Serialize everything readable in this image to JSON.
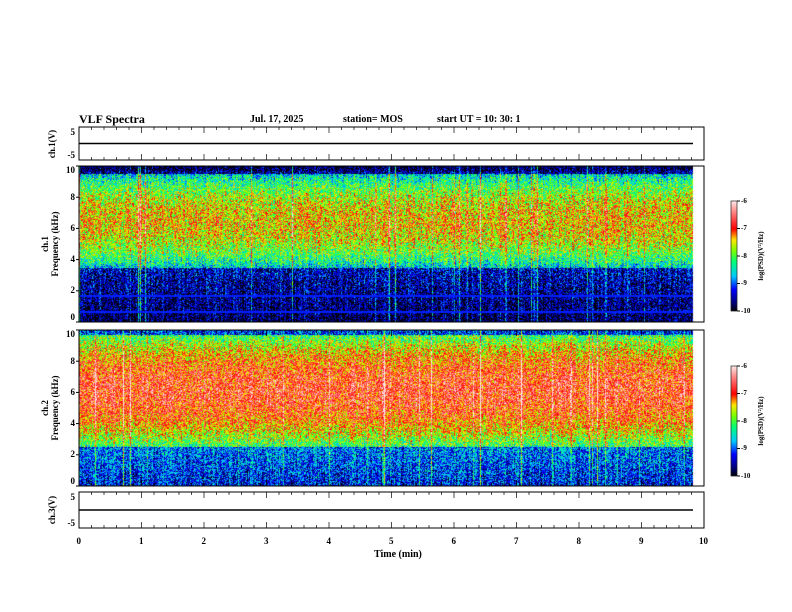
{
  "header": {
    "title": "VLF Spectra",
    "date": "Jul. 17, 2025",
    "station": "station= MOS",
    "start": "start  UT =   10: 30: 1"
  },
  "chart_data": {
    "type": "heatmap",
    "title": "VLF Spectra",
    "xlabel": "Time (min)",
    "xlim": [
      0,
      10
    ],
    "x_ticks": [
      "0",
      "1",
      "2",
      "3",
      "4",
      "5",
      "6",
      "7",
      "8",
      "9",
      "10"
    ],
    "data_end_min": 9.82,
    "panels": [
      {
        "name": "ch.1(V)",
        "type": "line",
        "ylabel": "ch.1(V)",
        "ylim": [
          -5,
          5
        ],
        "y_ticks": [
          "5",
          "-5"
        ],
        "level": 0
      },
      {
        "name": "ch.1 spectrogram",
        "type": "heatmap",
        "ylabel": "ch.1\nFrequency (kHz)",
        "ylim": [
          0,
          10
        ],
        "y_ticks": [
          "0",
          "2",
          "4",
          "6",
          "8",
          "10"
        ],
        "band_khz": [
          3.5,
          9.5
        ],
        "peak_log_psd": -7.3
      },
      {
        "name": "ch.2 spectrogram",
        "type": "heatmap",
        "ylabel": "ch.2\nFrequency (kHz)",
        "ylim": [
          0,
          10
        ],
        "y_ticks": [
          "0",
          "2",
          "4",
          "6",
          "8",
          "10"
        ],
        "band_khz": [
          2.5,
          9.8
        ],
        "peak_log_psd": -6.9
      },
      {
        "name": "ch.3(V)",
        "type": "line",
        "ylabel": "ch.3(V)",
        "ylim": [
          -5,
          5
        ],
        "y_ticks": [
          "5",
          "-5"
        ],
        "level": 0
      }
    ],
    "colorbar": {
      "label": "log(PSD)(V²/Hz)",
      "range": [
        -10,
        -6
      ],
      "ticks": [
        "-6",
        "-7",
        "-8",
        "-9",
        "-10"
      ]
    }
  }
}
